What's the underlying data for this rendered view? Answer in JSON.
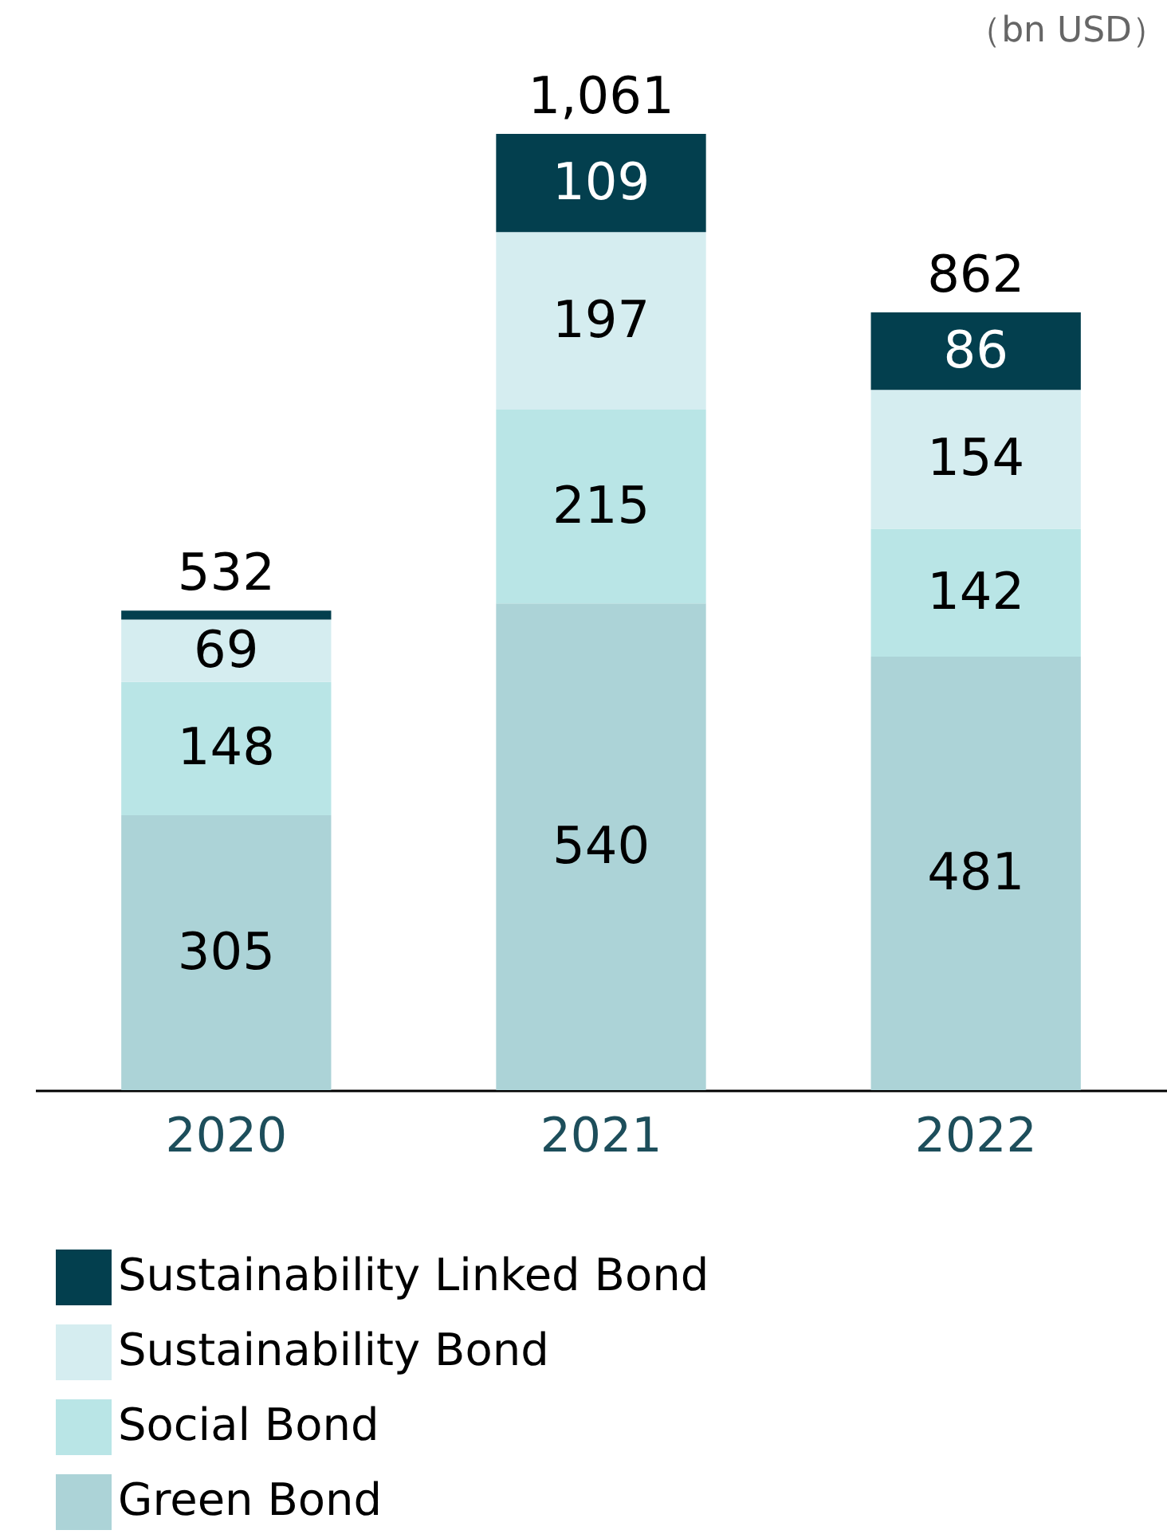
{
  "chart_data": {
    "type": "bar",
    "stacked": true,
    "categories": [
      "2020",
      "2021",
      "2022"
    ],
    "series": [
      {
        "name": "Green Bond",
        "color": "#acd3d7",
        "values": [
          305,
          540,
          481
        ],
        "value_labels": [
          "305",
          "540",
          "481"
        ]
      },
      {
        "name": "Social Bond",
        "color": "#b9e5e6",
        "values": [
          148,
          215,
          142
        ],
        "value_labels": [
          "148",
          "215",
          "142"
        ]
      },
      {
        "name": "Sustainability Bond",
        "color": "#d5edf0",
        "values": [
          69,
          197,
          154
        ],
        "value_labels": [
          "69",
          "197",
          "154"
        ]
      },
      {
        "name": "Sustainability Linked Bond",
        "color": "#033f4e",
        "values": [
          10,
          109,
          86
        ],
        "value_labels": [
          null,
          "109",
          "86"
        ]
      }
    ],
    "totals": [
      "532",
      "1,061",
      "862"
    ],
    "legend": "bottom left",
    "annotations": [
      "（bn USD）"
    ]
  }
}
